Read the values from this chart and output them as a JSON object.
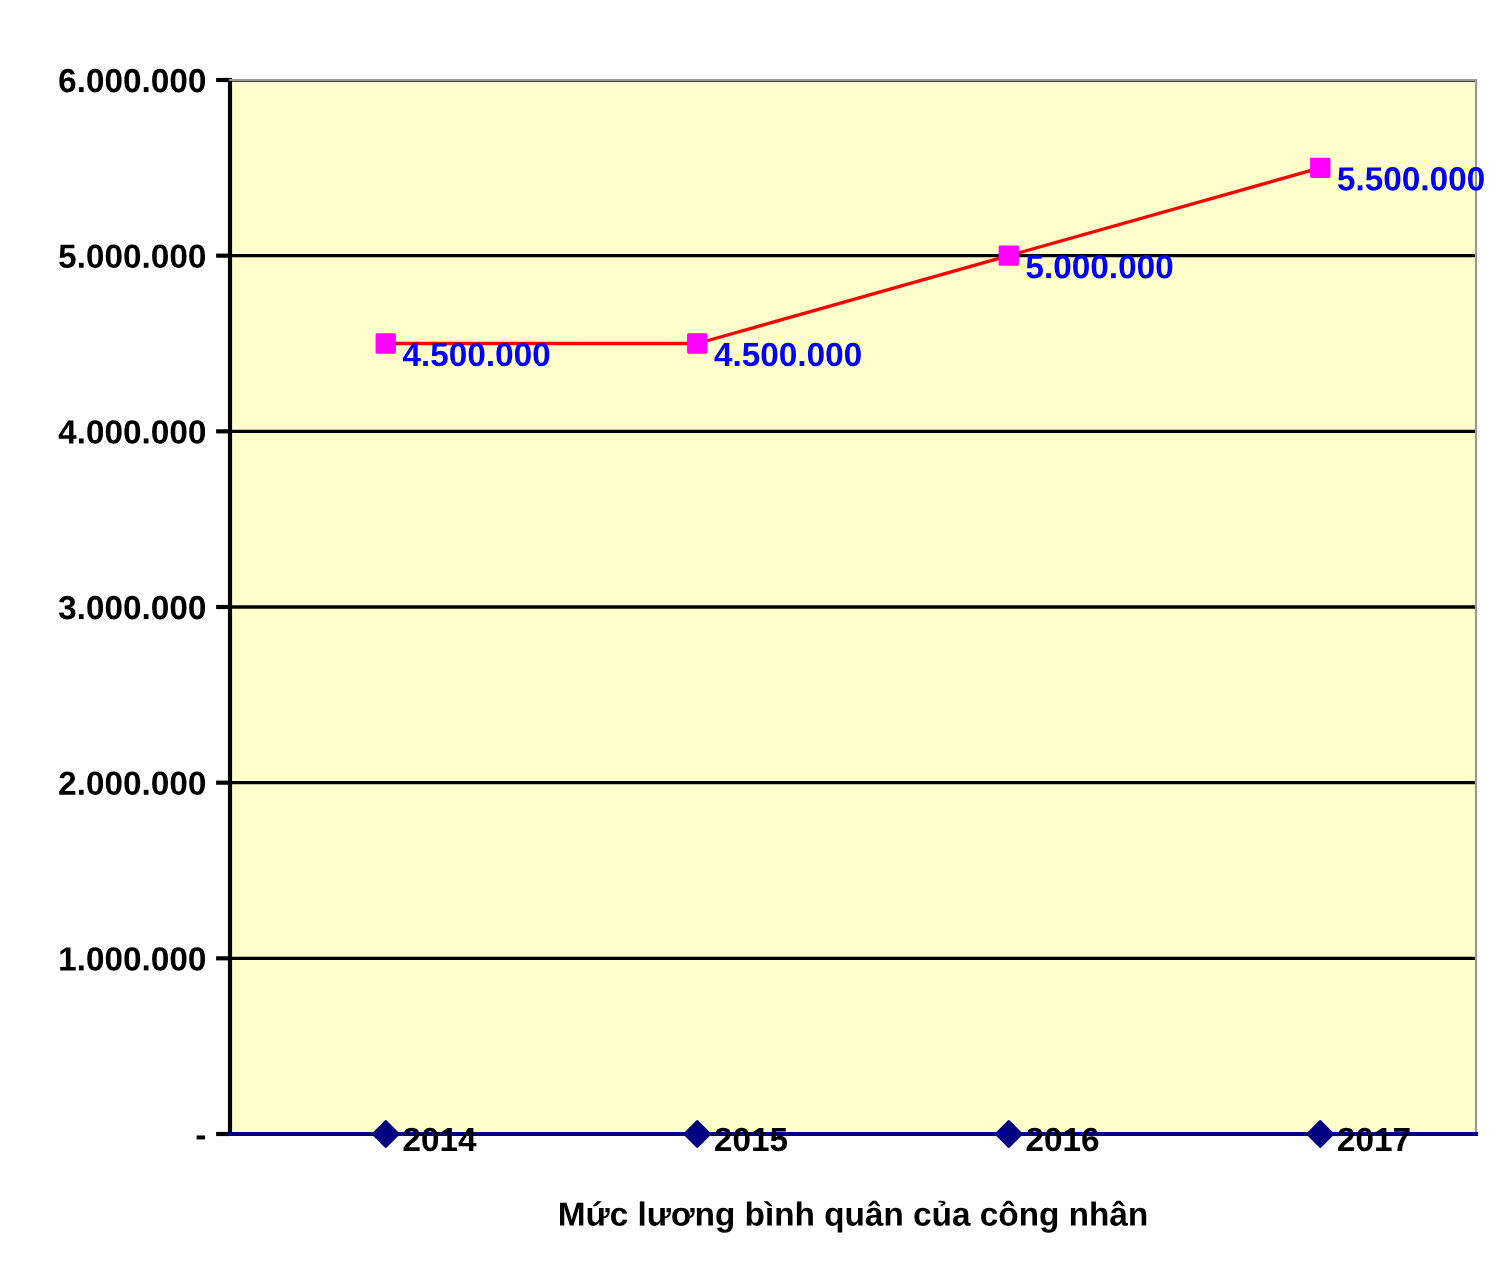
{
  "chart_data": {
    "type": "line",
    "xlabel": "Mức lương bình quân của công nhân",
    "categories": [
      "2014",
      "2015",
      "2016",
      "2017"
    ],
    "series": [
      {
        "type": "scatter",
        "color": "#000080",
        "values": [
          0,
          0,
          0,
          0
        ],
        "marker": "diamond"
      },
      {
        "color": "#ff0000",
        "colors": [
          "#ff00ff",
          "#ff00ff",
          "#ff00ff",
          "#ff00ff"
        ],
        "values": [
          4500000,
          4500000,
          5000000,
          5500000
        ],
        "marker": "square",
        "value_labels": [
          "4.500.000",
          "4.500.000",
          "5.000.000",
          "5.500.000"
        ]
      }
    ],
    "ylim": [
      0,
      6000000
    ],
    "yticks": [
      {
        "value": 0,
        "label": "-"
      },
      {
        "value": 1000000,
        "label": "1.000.000"
      },
      {
        "value": 2000000,
        "label": "2.000.000"
      },
      {
        "value": 3000000,
        "label": "3.000.000"
      },
      {
        "value": 4000000,
        "label": "4.000.000"
      },
      {
        "value": 5000000,
        "label": "5.000.000"
      },
      {
        "value": 6000000,
        "label": "6.000.000"
      }
    ],
    "grid": "y",
    "legend": false
  }
}
